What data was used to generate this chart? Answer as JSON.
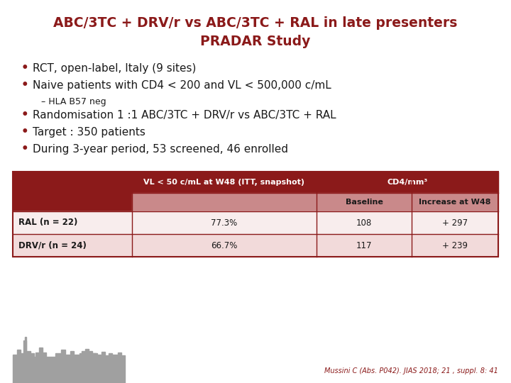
{
  "title_line1": "ABC/3TC + DRV/r vs ABC/3TC + RAL in late presenters",
  "title_line2": "PRADAR Study",
  "title_color": "#8B1A1A",
  "bullets": [
    "RCT, open-label, Italy (9 sites)",
    "Naive patients with CD4 < 200 and VL < 500,000 c/mL"
  ],
  "sub_bullet": "– HLA B57 neg",
  "extra_bullets": [
    "Randomisation 1 :1 ABC/3TC + DRV/r vs ABC/3TC + RAL",
    "Target : 350 patients",
    "During 3-year period, 53 screened, 46 enrolled"
  ],
  "bullet_color": "#8B1A1A",
  "text_color": "#1a1a1a",
  "table_header_bg": "#8B1A1A",
  "table_header_text": "#FFFFFF",
  "table_subheader_bg": "#C9898A",
  "table_row_bg_light": "#F2DADA",
  "table_row_bg_white": "#F8EDED",
  "table_border_color": "#8B1A1A",
  "table_text_color": "#1a1a1a",
  "col_headers": [
    "",
    "VL < 50 c/mL at W48 (ITT, snapshot)",
    "CD4/mm³"
  ],
  "sub_col_headers": [
    "",
    "",
    "Baseline",
    "Increase at W48"
  ],
  "rows": [
    [
      "RAL (n = 22)",
      "77.3%",
      "108",
      "+ 297"
    ],
    [
      "DRV/r (n = 24)",
      "66.7%",
      "117",
      "+ 239"
    ]
  ],
  "citation": "Mussini C (Abs. P042). JIAS 2018; 21 , suppl. 8: 41",
  "bg_color": "#FFFFFF"
}
